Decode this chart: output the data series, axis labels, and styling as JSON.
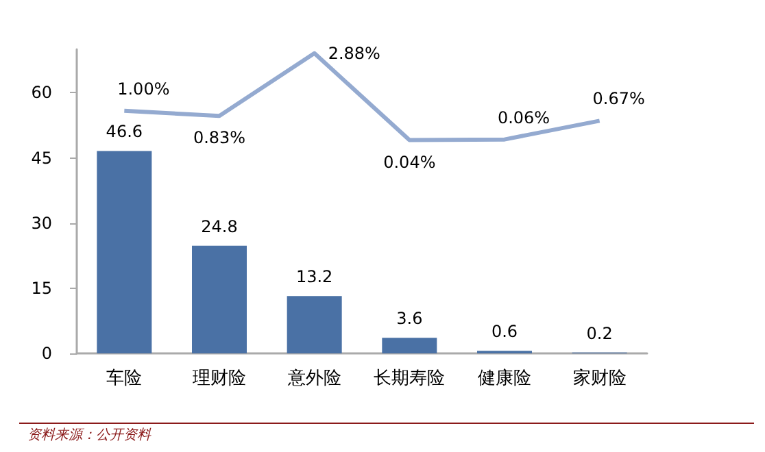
{
  "chart_data": {
    "type": "bar",
    "categories": [
      "车险",
      "理财险",
      "意外险",
      "长期寿险",
      "健康险",
      "家财险"
    ],
    "series": [
      {
        "color": "#4a71a5",
        "values": [
          46.6,
          24.8,
          13.2,
          3.6,
          0.6,
          0.2
        ]
      },
      {
        "type": "line",
        "axis": "y2",
        "color": "#94aad0",
        "values": [
          1.0,
          0.83,
          2.88,
          0.04,
          0.06,
          0.67
        ],
        "value_labels": [
          "1.00%",
          "0.83%",
          "2.88%",
          "0.04%",
          "0.06%",
          "0.67%"
        ]
      }
    ],
    "ylim": [
      0,
      70
    ],
    "yticks": [
      0,
      15,
      30,
      45,
      60
    ],
    "y2lim": [
      -6.94,
      3.01
    ],
    "data_labels": true,
    "grid": false,
    "marker": "none",
    "annotations": [
      "资料来源：公开资料"
    ]
  }
}
